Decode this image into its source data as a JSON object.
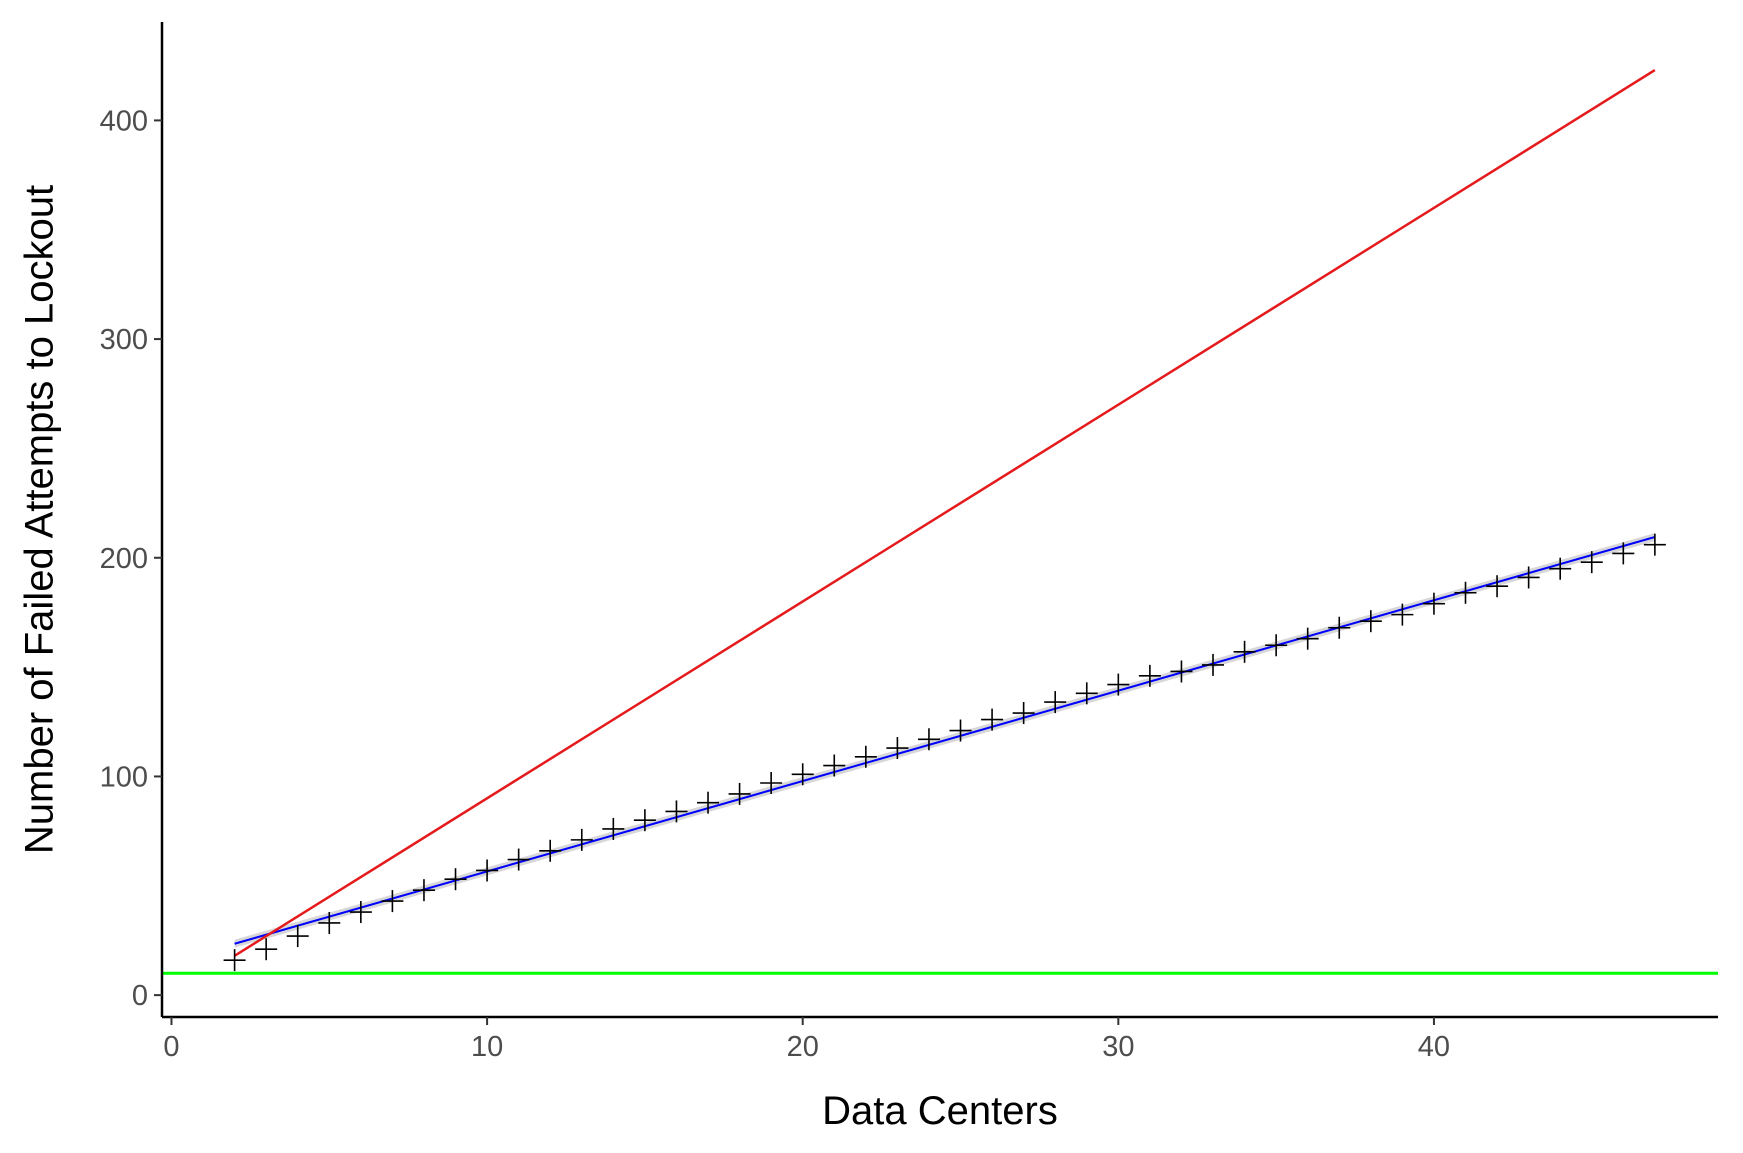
{
  "chart_data": {
    "type": "scatter",
    "title": "",
    "xlabel": "Data Centers",
    "ylabel": "Number of Failed Attempts to Lockout",
    "xlim": [
      -0.3,
      49
    ],
    "ylim": [
      -10,
      445
    ],
    "x_ticks": [
      0,
      10,
      20,
      30,
      40
    ],
    "y_ticks": [
      0,
      100,
      200,
      300,
      400
    ],
    "grid": false,
    "legend": "none",
    "points": {
      "marker": "plus",
      "color": "#000000",
      "x": [
        2,
        3,
        4,
        5,
        6,
        7,
        8,
        9,
        10,
        11,
        12,
        13,
        14,
        15,
        16,
        17,
        18,
        19,
        20,
        21,
        22,
        23,
        24,
        25,
        26,
        27,
        28,
        29,
        30,
        31,
        32,
        33,
        34,
        35,
        36,
        37,
        38,
        39,
        40,
        41,
        42,
        43,
        44,
        45,
        46,
        47
      ],
      "y": [
        16,
        21,
        27,
        33,
        38,
        43,
        48,
        53,
        57,
        62,
        66,
        71,
        76,
        80,
        84,
        88,
        92,
        97,
        101,
        105,
        109,
        113,
        117,
        121,
        126,
        129,
        134,
        138,
        142,
        146,
        148,
        151,
        157,
        160,
        163,
        168,
        171,
        174,
        179,
        184,
        187,
        191,
        195,
        198,
        202,
        206
      ]
    },
    "lines": [
      {
        "kind": "fit",
        "color": "#0000ff",
        "x": [
          2,
          47
        ],
        "y": [
          23.5,
          209.5
        ]
      },
      {
        "kind": "line",
        "color": "#e41a1c",
        "x": [
          2,
          47
        ],
        "y": [
          18,
          423
        ]
      },
      {
        "kind": "hline",
        "color": "#00ff00",
        "y": 10
      }
    ],
    "confidence_band_color": "#bdbdbd"
  }
}
